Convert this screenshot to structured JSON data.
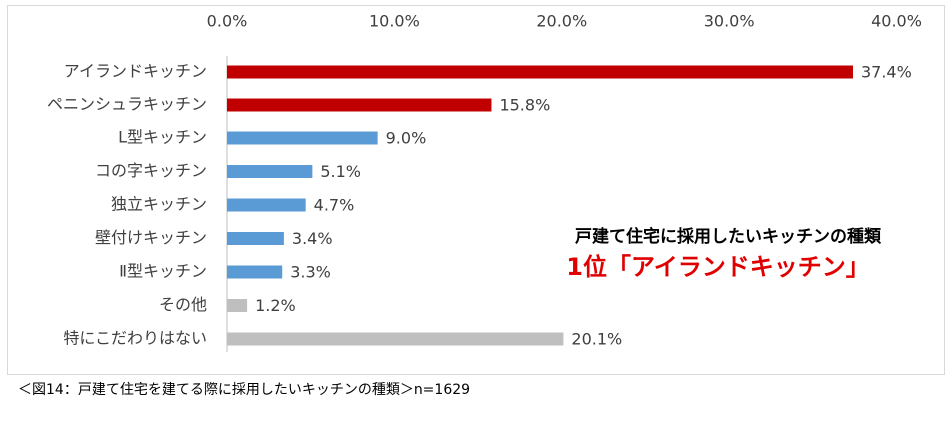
{
  "chart_data": {
    "type": "bar",
    "orientation": "horizontal",
    "categories": [
      "アイランドキッチン",
      "ペニンシュラキッチン",
      "L型キッチン",
      "コの字キッチン",
      "独立キッチン",
      "壁付けキッチン",
      "Ⅱ型キッチン",
      "その他",
      "特にこだわりはない"
    ],
    "values": [
      37.4,
      15.8,
      9.0,
      5.1,
      4.7,
      3.4,
      3.3,
      1.2,
      20.1
    ],
    "value_labels": [
      "37.4%",
      "15.8%",
      "9.0%",
      "5.1%",
      "4.7%",
      "3.4%",
      "3.3%",
      "1.2%",
      "20.1%"
    ],
    "colors": [
      "#c00000",
      "#c00000",
      "#5b9bd5",
      "#5b9bd5",
      "#5b9bd5",
      "#5b9bd5",
      "#5b9bd5",
      "#bfbfbf",
      "#bfbfbf"
    ],
    "xlim": [
      0,
      40
    ],
    "xticks": [
      {
        "value": 0,
        "label": "0.0%"
      },
      {
        "value": 10,
        "label": "10.0%"
      },
      {
        "value": 20,
        "label": "20.0%"
      },
      {
        "value": 30,
        "label": "30.0%"
      },
      {
        "value": 40,
        "label": "40.0%"
      }
    ],
    "grid": false,
    "annotations": [
      "戸建て住宅に採用したいキッチンの種類",
      "1位「アイランドキッチン」"
    ],
    "caption": "＜図14：戸建て住宅を建てる際に採用したいキッチンの種類＞n=1629"
  }
}
